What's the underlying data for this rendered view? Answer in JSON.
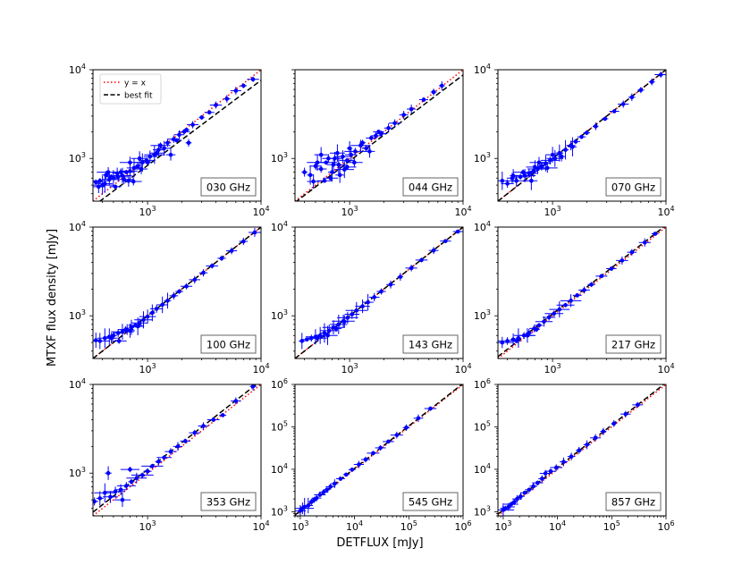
{
  "figure": {
    "ylabel": "MTXF flux density [mJy]",
    "xlabel": "DETFLUX [mJy]"
  },
  "legend": {
    "placement": "upper-left of first panel",
    "entries": [
      {
        "label": "y = x",
        "color": "#ff0000",
        "style": "dotted"
      },
      {
        "label": "best fit",
        "color": "#000000",
        "style": "dashed"
      }
    ]
  },
  "colors": {
    "points": "#0000ff",
    "identity": "#ff0000",
    "fit": "#000000"
  },
  "chart_data": [
    {
      "type": "scatter",
      "label": "030 GHz",
      "xscale": "log",
      "yscale": "log",
      "xlim": [
        330,
        10000
      ],
      "ylim": [
        330,
        10000
      ],
      "xticks": [
        {
          "v": 1000,
          "t": "10",
          "e": "3"
        },
        {
          "v": 10000,
          "t": "10",
          "e": "4"
        }
      ],
      "yticks": [
        {
          "v": 1000,
          "t": "10",
          "e": "3"
        },
        {
          "v": 10000,
          "t": "10",
          "e": "4"
        }
      ],
      "fit": {
        "a": 1.1,
        "b": 0.96
      },
      "x": [
        350,
        380,
        420,
        460,
        500,
        550,
        600,
        650,
        700,
        760,
        820,
        900,
        980,
        1050,
        1150,
        1250,
        1400,
        1500,
        1700,
        1900,
        2100,
        2500,
        3000,
        3500,
        4000,
        5000,
        6000,
        7000,
        8500,
        430,
        520,
        580,
        680,
        880,
        1600,
        2300,
        750,
        400,
        480,
        540,
        620,
        700,
        850,
        1000,
        1200,
        1300,
        1800,
        2200,
        370,
        450
      ],
      "y": [
        540,
        560,
        520,
        580,
        600,
        620,
        640,
        700,
        720,
        780,
        820,
        900,
        950,
        1050,
        1100,
        1250,
        1300,
        1500,
        1650,
        1850,
        2000,
        2400,
        2900,
        3300,
        4000,
        4700,
        5800,
        6600,
        7800,
        650,
        480,
        700,
        560,
        760,
        1100,
        1500,
        550,
        500,
        620,
        680,
        580,
        900,
        1000,
        900,
        1150,
        1400,
        1600,
        2100,
        480,
        700
      ]
    },
    {
      "type": "scatter",
      "label": "044 GHz",
      "xscale": "log",
      "yscale": "log",
      "xlim": [
        330,
        10000
      ],
      "ylim": [
        330,
        10000
      ],
      "xticks": [
        {
          "v": 1000,
          "t": "10",
          "e": "3"
        },
        {
          "v": 10000,
          "t": "10",
          "e": "4"
        }
      ],
      "yticks": [
        {
          "v": 1000,
          "t": "10",
          "e": "3"
        }
      ],
      "fit": {
        "a": 1.15,
        "b": 0.97
      },
      "x": [
        400,
        450,
        500,
        560,
        620,
        680,
        740,
        800,
        870,
        950,
        1030,
        1120,
        1250,
        1400,
        1550,
        1700,
        1900,
        2200,
        2500,
        3000,
        3500,
        4500,
        5500,
        6500,
        480,
        520,
        600,
        700,
        780,
        900,
        1000,
        1100,
        1300,
        650,
        820,
        950,
        1500,
        1800,
        560,
        720
      ],
      "y": [
        700,
        650,
        820,
        760,
        900,
        600,
        1000,
        850,
        1050,
        950,
        1100,
        1200,
        1400,
        1300,
        1700,
        1800,
        1900,
        2200,
        2500,
        3100,
        3600,
        4600,
        5600,
        6600,
        550,
        900,
        560,
        700,
        1150,
        750,
        1300,
        900,
        1500,
        1000,
        650,
        800,
        1200,
        2000,
        1100,
        850
      ]
    },
    {
      "type": "scatter",
      "label": "070 GHz",
      "xscale": "log",
      "yscale": "log",
      "xlim": [
        330,
        10000
      ],
      "ylim": [
        330,
        10000
      ],
      "xticks": [
        {
          "v": 1000,
          "t": "10",
          "e": "3"
        },
        {
          "v": 10000,
          "t": "10",
          "e": "4"
        }
      ],
      "yticks": [
        {
          "v": 1000,
          "t": "10",
          "e": "3"
        },
        {
          "v": 10000,
          "t": "10",
          "e": "4"
        }
      ],
      "fit": {
        "a": 1.0,
        "b": 1.0
      },
      "x": [
        360,
        400,
        440,
        480,
        520,
        570,
        620,
        680,
        740,
        800,
        870,
        950,
        1050,
        1150,
        1300,
        1450,
        1600,
        1800,
        2000,
        2400,
        2900,
        3500,
        4200,
        5000,
        6000,
        7500,
        9000,
        450,
        550,
        650,
        760,
        900,
        1000,
        1200,
        1500,
        700
      ],
      "y": [
        560,
        520,
        600,
        560,
        620,
        640,
        680,
        720,
        760,
        820,
        880,
        950,
        1000,
        1150,
        1250,
        1400,
        1550,
        1750,
        1950,
        2300,
        2800,
        3400,
        4100,
        4900,
        5900,
        7300,
        8800,
        640,
        700,
        560,
        900,
        780,
        1100,
        1050,
        1350,
        800
      ]
    },
    {
      "type": "scatter",
      "label": "100 GHz",
      "xscale": "log",
      "yscale": "log",
      "xlim": [
        330,
        10000
      ],
      "ylim": [
        330,
        10000
      ],
      "xticks": [
        {
          "v": 1000,
          "t": "10",
          "e": "3"
        },
        {
          "v": 10000,
          "t": "10",
          "e": "4"
        }
      ],
      "yticks": [
        {
          "v": 1000,
          "t": "10",
          "e": "3"
        },
        {
          "v": 10000,
          "t": "10",
          "e": "4"
        }
      ],
      "fit": {
        "a": 1.0,
        "b": 1.0
      },
      "x": [
        350,
        380,
        420,
        460,
        500,
        550,
        600,
        660,
        720,
        780,
        850,
        920,
        1000,
        1100,
        1200,
        1350,
        1500,
        1700,
        1900,
        2200,
        2600,
        3100,
        3700,
        4500,
        5500,
        7000,
        8800,
        480,
        560,
        640,
        700,
        820
      ],
      "y": [
        530,
        520,
        560,
        580,
        600,
        640,
        660,
        700,
        740,
        780,
        830,
        900,
        980,
        1080,
        1200,
        1330,
        1480,
        1680,
        1880,
        2150,
        2550,
        3050,
        3650,
        4450,
        5400,
        6900,
        8700,
        560,
        520,
        700,
        680,
        760
      ]
    },
    {
      "type": "scatter",
      "label": "143 GHz",
      "xscale": "log",
      "yscale": "log",
      "xlim": [
        330,
        10000
      ],
      "ylim": [
        330,
        10000
      ],
      "xticks": [
        {
          "v": 1000,
          "t": "10",
          "e": "3"
        },
        {
          "v": 10000,
          "t": "10",
          "e": "4"
        }
      ],
      "yticks": [
        {
          "v": 1000,
          "t": "10",
          "e": "3"
        },
        {
          "v": 10000,
          "t": "10",
          "e": "4"
        }
      ],
      "fit": {
        "a": 1.0,
        "b": 1.0
      },
      "x": [
        380,
        420,
        460,
        500,
        550,
        600,
        660,
        720,
        800,
        880,
        960,
        1050,
        1150,
        1300,
        1450,
        1650,
        1900,
        2300,
        2800,
        3500,
        4300,
        5500,
        7000,
        9000,
        520,
        640,
        760,
        900
      ],
      "y": [
        520,
        540,
        560,
        580,
        600,
        640,
        680,
        740,
        800,
        870,
        950,
        1040,
        1150,
        1280,
        1420,
        1620,
        1880,
        2250,
        2750,
        3450,
        4250,
        5450,
        6950,
        8900,
        560,
        600,
        720,
        860
      ]
    },
    {
      "type": "scatter",
      "label": "217 GHz",
      "xscale": "log",
      "yscale": "log",
      "xlim": [
        330,
        10000
      ],
      "ylim": [
        330,
        10000
      ],
      "xticks": [
        {
          "v": 1000,
          "t": "10",
          "e": "3"
        },
        {
          "v": 10000,
          "t": "10",
          "e": "4"
        }
      ],
      "yticks": [
        {
          "v": 1000,
          "t": "10",
          "e": "3"
        },
        {
          "v": 10000,
          "t": "10",
          "e": "4"
        }
      ],
      "fit": {
        "a": 1.05,
        "b": 1.0
      },
      "x": [
        360,
        400,
        450,
        500,
        560,
        620,
        690,
        760,
        840,
        930,
        1030,
        1150,
        1300,
        1450,
        1650,
        1900,
        2200,
        2700,
        3300,
        4100,
        5000,
        6500,
        8000,
        480,
        600,
        720
      ],
      "y": [
        500,
        520,
        540,
        560,
        600,
        640,
        720,
        780,
        860,
        960,
        1060,
        1180,
        1320,
        1480,
        1700,
        1950,
        2250,
        2800,
        3400,
        4200,
        5200,
        6700,
        8400,
        520,
        600,
        700
      ]
    },
    {
      "type": "scatter",
      "label": "353 GHz",
      "xscale": "log",
      "yscale": "log",
      "xlim": [
        330,
        10000
      ],
      "ylim": [
        330,
        10000
      ],
      "xticks": [
        {
          "v": 1000,
          "t": "10",
          "e": "3"
        },
        {
          "v": 10000,
          "t": "10",
          "e": "4"
        }
      ],
      "yticks": [
        {
          "v": 1000,
          "t": "10",
          "e": "3"
        },
        {
          "v": 10000,
          "t": "10",
          "e": "4"
        }
      ],
      "fit": {
        "a": 1.1,
        "b": 1.0
      },
      "x": [
        340,
        380,
        420,
        470,
        520,
        580,
        650,
        720,
        800,
        900,
        1000,
        1100,
        1250,
        1400,
        1600,
        1850,
        2150,
        2600,
        3100,
        3800,
        4600,
        6000,
        8500,
        450,
        600,
        700
      ],
      "y": [
        480,
        520,
        600,
        540,
        620,
        650,
        720,
        800,
        880,
        950,
        1050,
        1200,
        1350,
        1500,
        1750,
        2000,
        2300,
        2850,
        3400,
        4000,
        4500,
        6500,
        9500,
        1000,
        500,
        1100
      ]
    },
    {
      "type": "scatter",
      "label": "545 GHz",
      "xscale": "log",
      "yscale": "log",
      "xlim": [
        800,
        1000000
      ],
      "ylim": [
        800,
        1000000
      ],
      "xticks": [
        {
          "v": 1000,
          "t": "10",
          "e": "3"
        },
        {
          "v": 10000,
          "t": "10",
          "e": "4"
        },
        {
          "v": 100000,
          "t": "10",
          "e": "5"
        },
        {
          "v": 1000000,
          "t": "10",
          "e": "6"
        }
      ],
      "yticks": [
        {
          "v": 1000,
          "t": "10",
          "e": "3"
        },
        {
          "v": 10000,
          "t": "10",
          "e": "4"
        },
        {
          "v": 100000,
          "t": "10",
          "e": "5"
        },
        {
          "v": 1000000,
          "t": "10",
          "e": "6"
        }
      ],
      "fit": {
        "a": 1.05,
        "b": 1.0
      },
      "x": [
        1000,
        1100,
        1200,
        1400,
        1600,
        1800,
        2000,
        2300,
        2700,
        3100,
        3600,
        4300,
        5500,
        7000,
        9000,
        12000,
        16000,
        22000,
        30000,
        42000,
        60000,
        90000,
        150000,
        250000
      ],
      "y": [
        1050,
        1200,
        1300,
        1400,
        1700,
        1900,
        2100,
        2500,
        2900,
        3300,
        3900,
        4600,
        6000,
        7500,
        9800,
        13000,
        17000,
        24000,
        32000,
        45000,
        64000,
        96000,
        160000,
        270000
      ]
    },
    {
      "type": "scatter",
      "label": "857 GHz",
      "xscale": "log",
      "yscale": "log",
      "xlim": [
        800,
        1000000
      ],
      "ylim": [
        800,
        1000000
      ],
      "xticks": [
        {
          "v": 1000,
          "t": "10",
          "e": "3"
        },
        {
          "v": 10000,
          "t": "10",
          "e": "4"
        },
        {
          "v": 100000,
          "t": "10",
          "e": "5"
        },
        {
          "v": 1000000,
          "t": "10",
          "e": "6"
        }
      ],
      "yticks": [
        {
          "v": 1000,
          "t": "10",
          "e": "3"
        },
        {
          "v": 10000,
          "t": "10",
          "e": "4"
        },
        {
          "v": 100000,
          "t": "10",
          "e": "5"
        },
        {
          "v": 1000000,
          "t": "10",
          "e": "6"
        }
      ],
      "fit": {
        "a": 1.1,
        "b": 1.0
      },
      "x": [
        1000,
        1100,
        1250,
        1400,
        1600,
        1800,
        2100,
        2500,
        3000,
        3600,
        4300,
        5200,
        6000,
        7500,
        9500,
        13000,
        18000,
        25000,
        35000,
        50000,
        70000,
        110000,
        180000,
        300000
      ],
      "y": [
        1100,
        1200,
        1300,
        1500,
        1700,
        2000,
        2300,
        2800,
        3300,
        4000,
        4800,
        6000,
        8000,
        9000,
        11000,
        15000,
        20000,
        28000,
        38000,
        55000,
        78000,
        120000,
        200000,
        330000
      ]
    }
  ]
}
